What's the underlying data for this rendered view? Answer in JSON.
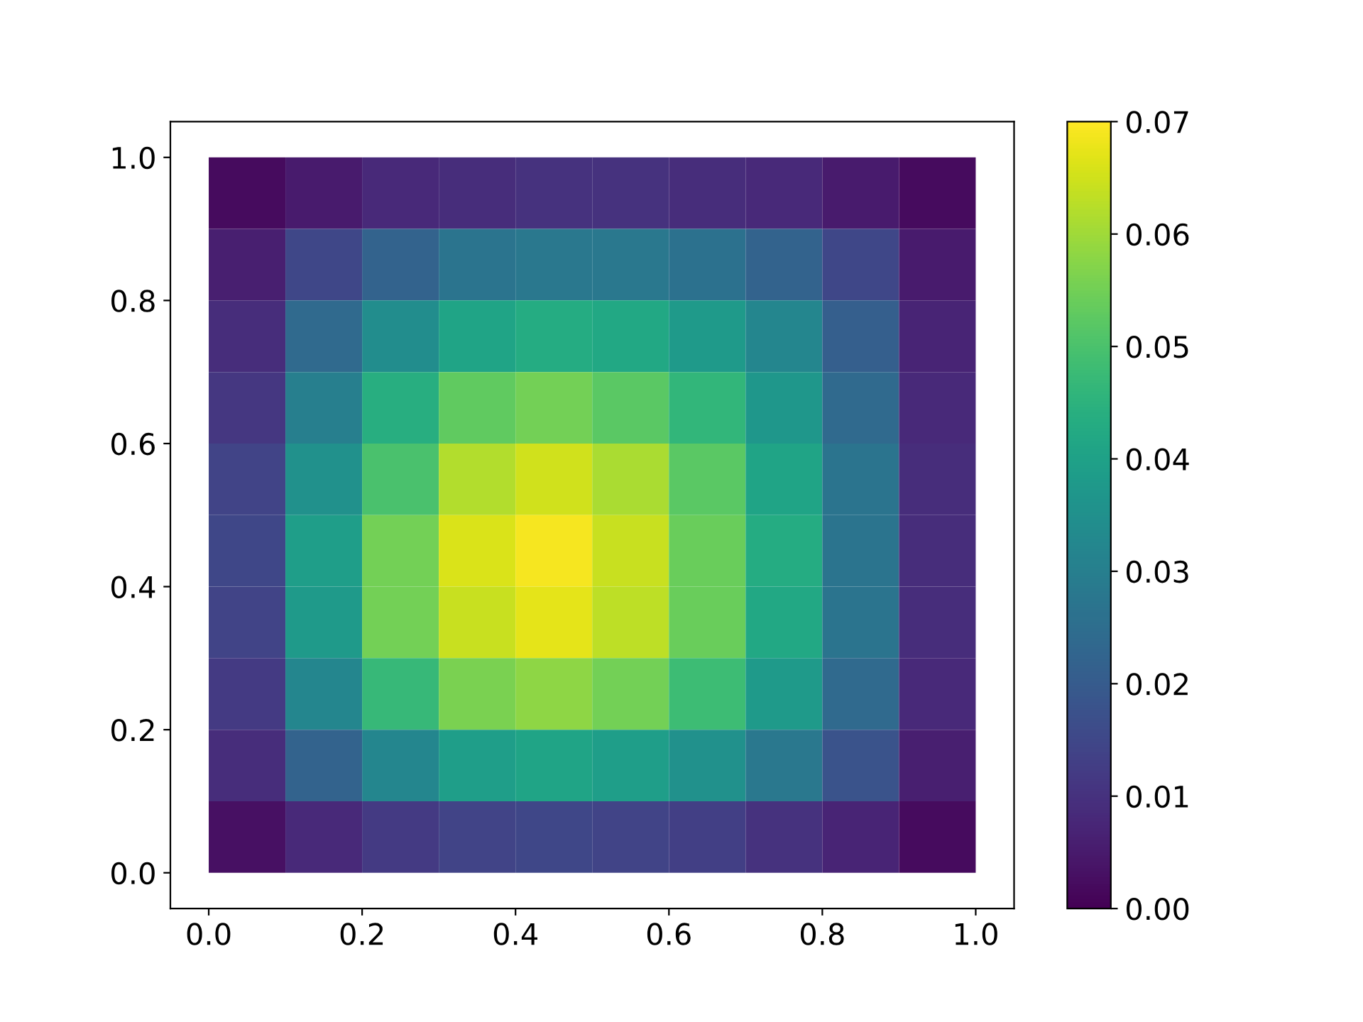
{
  "chart_data": {
    "type": "heatmap",
    "x": [
      0.05,
      0.15,
      0.25,
      0.35,
      0.45,
      0.55,
      0.65,
      0.75,
      0.85,
      0.95
    ],
    "y": [
      0.95,
      0.85,
      0.75,
      0.65,
      0.55,
      0.45,
      0.35,
      0.25,
      0.15,
      0.05
    ],
    "cells": [
      [
        0.002,
        0.005,
        0.008,
        0.009,
        0.01,
        0.01,
        0.009,
        0.008,
        0.005,
        0.002
      ],
      [
        0.006,
        0.015,
        0.022,
        0.027,
        0.028,
        0.028,
        0.026,
        0.022,
        0.015,
        0.005
      ],
      [
        0.009,
        0.024,
        0.034,
        0.041,
        0.043,
        0.042,
        0.038,
        0.032,
        0.021,
        0.007
      ],
      [
        0.011,
        0.03,
        0.044,
        0.053,
        0.055,
        0.052,
        0.046,
        0.037,
        0.024,
        0.008
      ],
      [
        0.014,
        0.035,
        0.05,
        0.062,
        0.065,
        0.061,
        0.052,
        0.041,
        0.027,
        0.009
      ],
      [
        0.015,
        0.039,
        0.055,
        0.066,
        0.069,
        0.064,
        0.054,
        0.043,
        0.027,
        0.009
      ],
      [
        0.014,
        0.038,
        0.055,
        0.064,
        0.067,
        0.063,
        0.054,
        0.042,
        0.027,
        0.009
      ],
      [
        0.012,
        0.032,
        0.047,
        0.056,
        0.058,
        0.055,
        0.048,
        0.038,
        0.024,
        0.008
      ],
      [
        0.009,
        0.022,
        0.032,
        0.039,
        0.041,
        0.039,
        0.035,
        0.028,
        0.018,
        0.006
      ],
      [
        0.003,
        0.008,
        0.012,
        0.014,
        0.015,
        0.014,
        0.013,
        0.01,
        0.007,
        0.002
      ]
    ],
    "xlim": [
      -0.05,
      1.05
    ],
    "ylim": [
      -0.05,
      1.05
    ],
    "xticks": [
      {
        "value": 0,
        "label": "0.0"
      },
      0.2,
      0.4,
      0.6,
      0.8,
      {
        "value": 1,
        "label": "1.0"
      }
    ],
    "yticks": [
      {
        "value": 0,
        "label": "0.0"
      },
      0.2,
      0.4,
      0.6,
      0.8,
      {
        "value": 1,
        "label": "1.0"
      }
    ],
    "clim": [
      0,
      0.07
    ],
    "cticks": [
      {
        "value": 0,
        "label": "0.00"
      },
      0.01,
      0.02,
      0.03,
      0.04,
      0.05,
      0.06,
      0.07
    ]
  }
}
